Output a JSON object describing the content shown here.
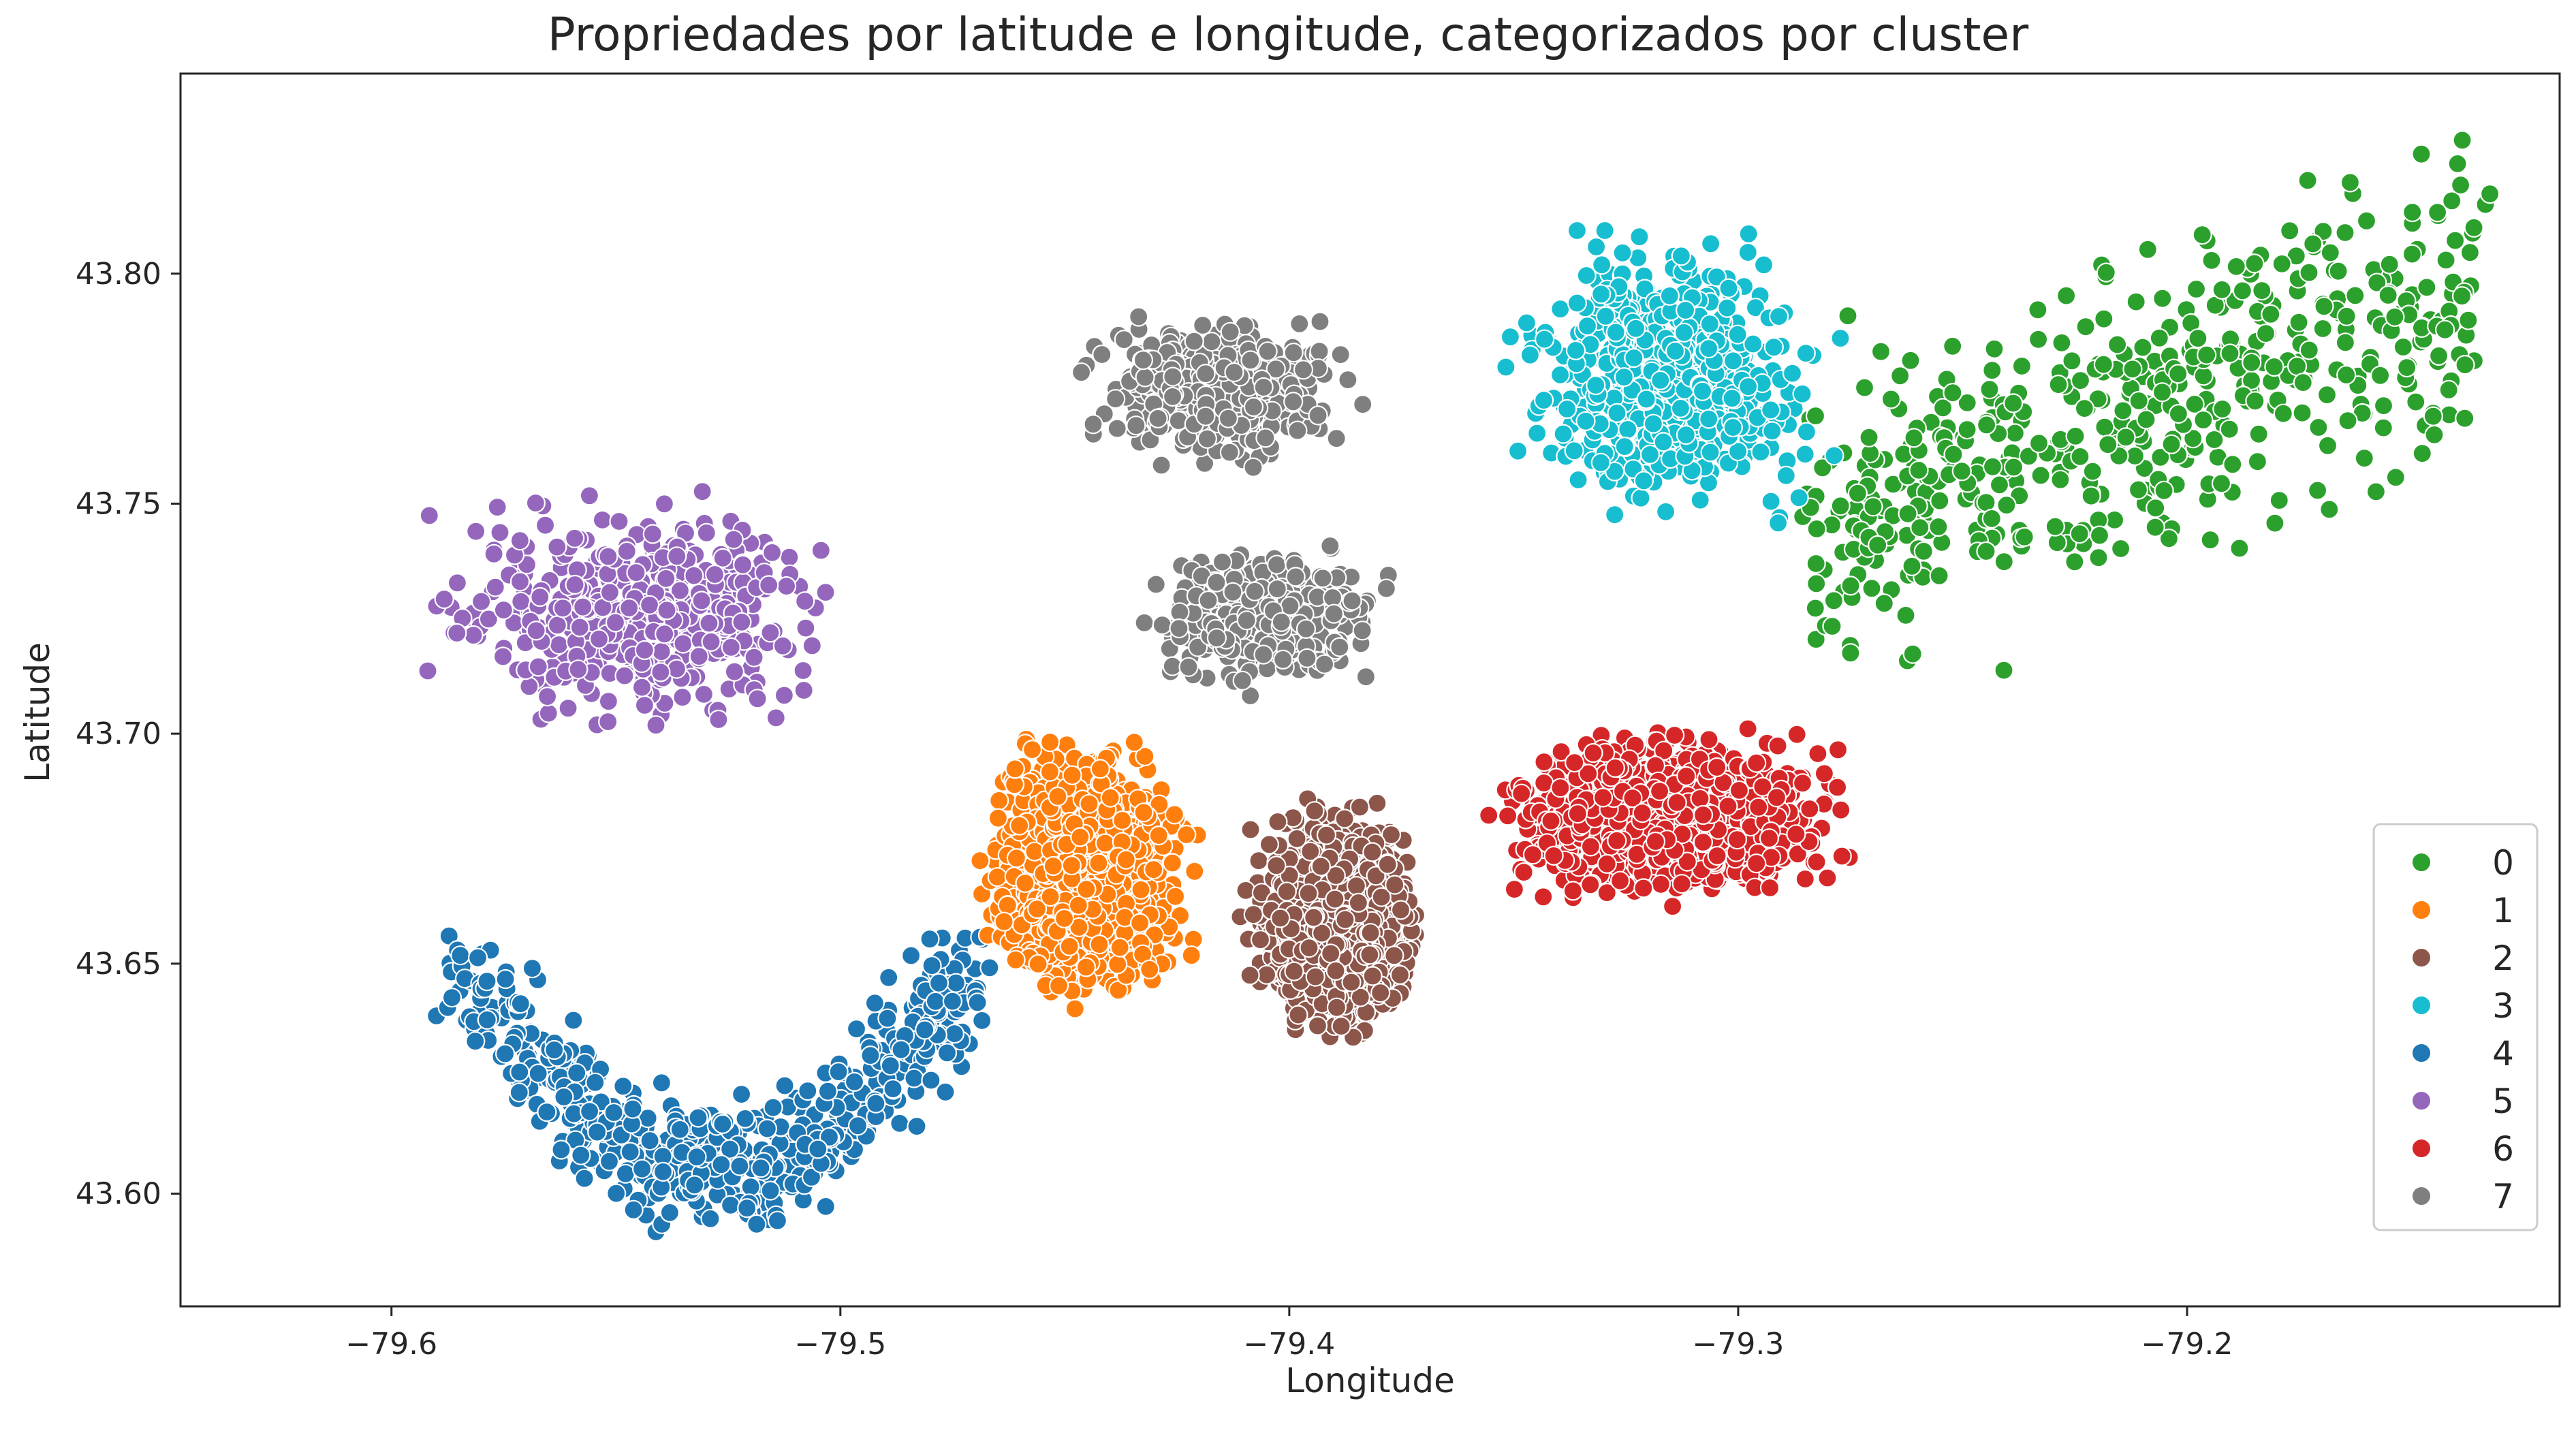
{
  "chart_data": {
    "type": "scatter",
    "title": "Propriedades por latitude e longitude, categorizados por cluster",
    "xlabel": "Longitude",
    "ylabel": "Latitude",
    "xlim": [
      -79.647,
      -79.117
    ],
    "ylim": [
      43.5755,
      43.8435
    ],
    "x_ticks": [
      -79.6,
      -79.5,
      -79.4,
      -79.3,
      -79.2
    ],
    "x_tick_labels": [
      "−79.6",
      "−79.5",
      "−79.4",
      "−79.3",
      "−79.2"
    ],
    "y_ticks": [
      43.6,
      43.65,
      43.7,
      43.75,
      43.8
    ],
    "y_tick_labels": [
      "43.60",
      "43.65",
      "43.70",
      "43.75",
      "43.80"
    ],
    "grid": false,
    "legend_position": "lower-right",
    "series": [
      {
        "name": "0",
        "color": "#2ca02c",
        "x_range": [
          -79.285,
          -79.135
        ],
        "y_range": [
          43.7,
          43.83
        ]
      },
      {
        "name": "1",
        "color": "#ff7f0e",
        "x_range": [
          -79.49,
          -79.405
        ],
        "y_range": [
          43.635,
          43.718
        ]
      },
      {
        "name": "2",
        "color": "#8c564b",
        "x_range": [
          -79.42,
          -79.355
        ],
        "y_range": [
          43.628,
          43.71
        ]
      },
      {
        "name": "3",
        "color": "#17becf",
        "x_range": [
          -79.375,
          -79.265
        ],
        "y_range": [
          43.73,
          43.828
        ]
      },
      {
        "name": "4",
        "color": "#1f77b4",
        "x_range": [
          -79.59,
          -79.465
        ],
        "y_range": [
          43.588,
          43.683
        ]
      },
      {
        "name": "5",
        "color": "#9467bd",
        "x_range": [
          -79.623,
          -79.47
        ],
        "y_range": [
          43.678,
          43.775
        ]
      },
      {
        "name": "6",
        "color": "#d62728",
        "x_range": [
          -79.385,
          -79.245
        ],
        "y_range": [
          43.656,
          43.732
        ]
      },
      {
        "name": "7",
        "color": "#7f7f7f",
        "x_range": [
          -79.47,
          -79.365
        ],
        "y_range": [
          43.705,
          43.805
        ]
      }
    ]
  }
}
